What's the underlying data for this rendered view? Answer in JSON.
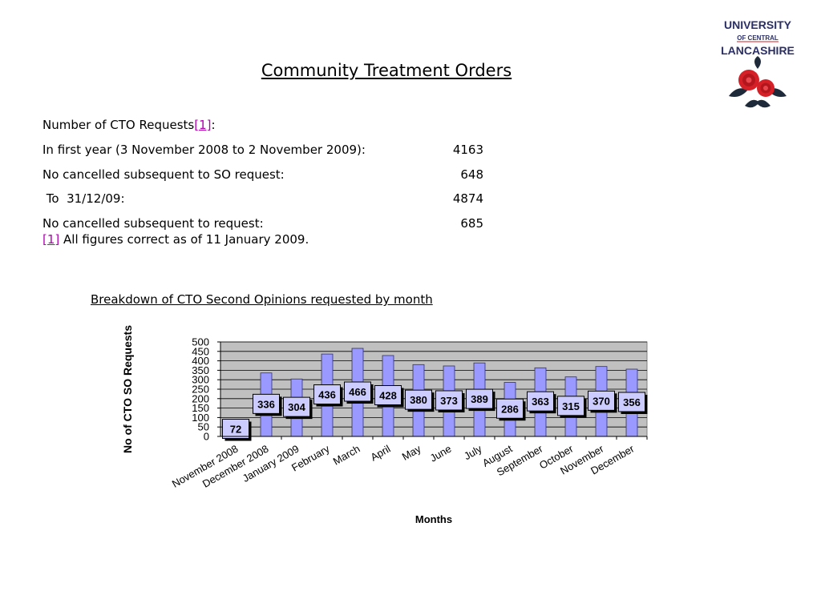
{
  "page": {
    "title": "Community Treatment Orders",
    "heading_text": "Number of CTO Requests",
    "heading_ref": "[1]",
    "heading_colon": ":",
    "rows": [
      {
        "label": "In first year (3 November 2008 to 2 November 2009):",
        "value": "4163"
      },
      {
        "label": "No cancelled subsequent to SO request:",
        "value": "648"
      },
      {
        "label": " To  31/12/09:",
        "value": "4874"
      },
      {
        "label": "No cancelled subsequent to request:",
        "value": "685"
      }
    ],
    "footnote_ref": "[1]",
    "footnote_text": " All figures correct as of 11 January 2009.",
    "chart_heading": "Breakdown of CTO Second Opinions requested by month"
  },
  "logo": {
    "line1": "UNIVERSITY",
    "line2": "OF CENTRAL",
    "line3": "LANCASHIRE",
    "colors": {
      "text": "#2b2f66",
      "rose": "#d62028",
      "leaf": "#1e2a3a"
    }
  },
  "chart_data": {
    "type": "bar",
    "categories": [
      "November 2008",
      "December 2008",
      "January 2009",
      "February",
      "March",
      "April",
      "May",
      "June",
      "July",
      "August",
      "September",
      "October",
      "November",
      "December"
    ],
    "values": [
      72,
      336,
      304,
      436,
      466,
      428,
      380,
      373,
      389,
      286,
      363,
      315,
      370,
      356
    ],
    "title": "",
    "xlabel": "Months",
    "ylabel": "No of CTO SO Requests",
    "ylim": [
      0,
      500
    ],
    "yticks": [
      0,
      50,
      100,
      150,
      200,
      250,
      300,
      350,
      400,
      450,
      500
    ],
    "grid": true,
    "colors": {
      "bar": "#9999ff",
      "plot_bg": "#c0c0c0",
      "label_bg": "#ccccff"
    }
  }
}
